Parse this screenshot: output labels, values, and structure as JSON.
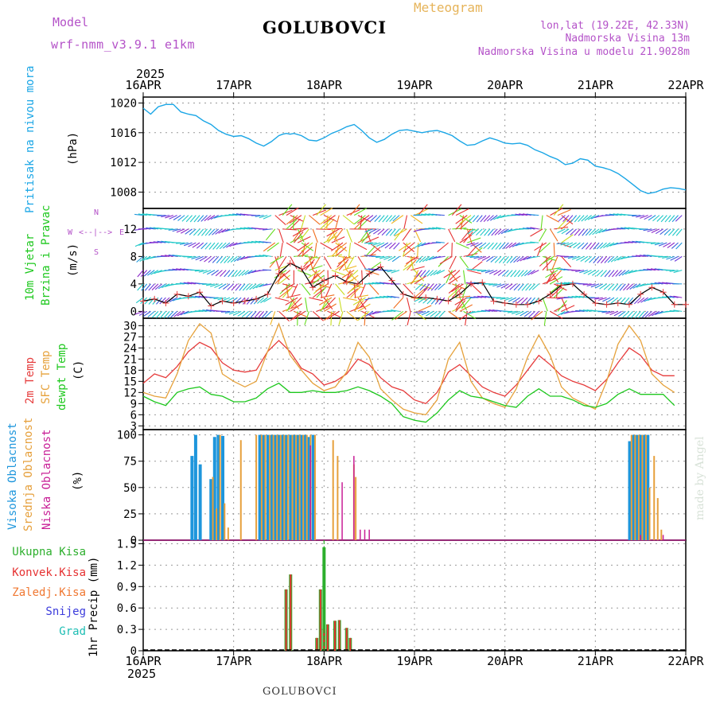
{
  "header": {
    "model_label": "Model",
    "model_name": "wrf-nmm_v3.9.1 e1km",
    "station": "GOLUBOVCI",
    "product": "Meteogram",
    "coords": "lon,lat (19.22E, 42.33N)",
    "elevation": "Nadmorska Visina 13m",
    "model_elevation": "Nadmorska Visina u modelu 21.9028m",
    "footer_station": "GOLUBOVCI",
    "credit": "made by Angel",
    "year": "2025"
  },
  "colors": {
    "pressure": "#1aa6e6",
    "temp2m": "#e63c3c",
    "sfc_temp": "#e6a23c",
    "dewpoint": "#1ec81e",
    "high_cloud": "#1e96dc",
    "mid_cloud": "#e6a03c",
    "low_cloud": "#c81e96",
    "total_precip": "#2daf2d",
    "conv_precip": "#e63232",
    "strat_precip": "#f07832",
    "snow": "#3c3cdc",
    "hail": "#1ebeb4",
    "purple_text": "#b452c8",
    "orange_text": "#e6b45a"
  },
  "panels": {
    "pressure": {
      "title": "Pritisak na nivou mora",
      "unit": "(hPa)"
    },
    "wind": {
      "title1": "10m Vjetar",
      "title2": "Brzina i Pravac",
      "unit": "(m/s)",
      "compass_n": "N",
      "compass_w": "W",
      "compass_e": "E",
      "compass_s": "S",
      "compass_arrows": "<--|-->"
    },
    "temp": {
      "title1": "2m Temp",
      "title2": "SFC Temp",
      "title3": "dewpt Temp",
      "unit": "(C)"
    },
    "cloud": {
      "title1": "Visoka Oblacnost",
      "title2": "Srednja Oblacnost",
      "title3": "Niska Oblacnost",
      "unit": "(%)"
    },
    "precip": {
      "leg1": "Ukupna Kisa",
      "leg2": "Konvek.Kisa",
      "leg3": "Zaledj.Kisa",
      "leg4": "Snijeg",
      "leg5": "Grad",
      "unit": "1hr Precip (mm)"
    }
  },
  "chart_data": [
    {
      "type": "line",
      "name": "pressure",
      "x_days": [
        0,
        0.083,
        0.125,
        0.167,
        0.25,
        0.333,
        0.375,
        0.417,
        0.5,
        0.583,
        0.667,
        0.75,
        0.833,
        0.917,
        1.0,
        1.083,
        1.167,
        1.25,
        1.333,
        1.417,
        1.5,
        1.542,
        1.583,
        1.625,
        1.667,
        1.75,
        1.833,
        1.917,
        2.0,
        2.083,
        2.167,
        2.25,
        2.333,
        2.417,
        2.5,
        2.583,
        2.667,
        2.75,
        2.833,
        2.917,
        3.0,
        3.083,
        3.167,
        3.25,
        3.333,
        3.417,
        3.5,
        3.583,
        3.667,
        3.75,
        3.833,
        3.917,
        4.0,
        4.083,
        4.167,
        4.25,
        4.333,
        4.417,
        4.5,
        4.583,
        4.667,
        4.75,
        4.833,
        4.917,
        5.0,
        5.083,
        5.167,
        5.25,
        5.333,
        5.417,
        5.5,
        5.583,
        5.667,
        5.75,
        5.833,
        5.917,
        6.0
      ],
      "values": [
        1019.3,
        1018.5,
        1019.0,
        1019.5,
        1019.8,
        1019.8,
        1019.3,
        1018.8,
        1018.5,
        1018.3,
        1017.6,
        1017.1,
        1016.3,
        1015.8,
        1015.5,
        1015.6,
        1015.2,
        1014.6,
        1014.2,
        1014.8,
        1015.6,
        1015.8,
        1015.9,
        1015.8,
        1015.9,
        1015.6,
        1015.0,
        1014.9,
        1015.3,
        1015.9,
        1016.3,
        1016.8,
        1017.1,
        1016.3,
        1015.3,
        1014.7,
        1015.1,
        1015.8,
        1016.3,
        1016.4,
        1016.2,
        1016.0,
        1016.2,
        1016.3,
        1016.0,
        1015.6,
        1014.9,
        1014.3,
        1014.4,
        1014.9,
        1015.3,
        1015.0,
        1014.6,
        1014.5,
        1014.6,
        1014.3,
        1013.7,
        1013.3,
        1012.8,
        1012.4,
        1011.7,
        1011.9,
        1012.5,
        1012.3,
        1011.5,
        1011.3,
        1011.0,
        1010.5,
        1009.8,
        1009.0,
        1008.2,
        1007.8,
        1008.0,
        1008.4,
        1008.6,
        1008.5,
        1008.3
      ],
      "yticks": [
        1008,
        1012,
        1016,
        1020
      ],
      "ylim": [
        1005.8,
        1020.8
      ]
    },
    {
      "type": "line",
      "name": "wind_speed",
      "x_days": [
        0,
        0.125,
        0.25,
        0.375,
        0.5,
        0.625,
        0.75,
        0.875,
        1.0,
        1.125,
        1.25,
        1.375,
        1.5,
        1.625,
        1.75,
        1.875,
        2.0,
        2.125,
        2.25,
        2.375,
        2.5,
        2.625,
        2.75,
        2.875,
        3.0,
        3.125,
        3.25,
        3.375,
        3.5,
        3.625,
        3.75,
        3.875,
        4.0,
        4.125,
        4.25,
        4.375,
        4.5,
        4.625,
        4.75,
        4.875,
        5.0,
        5.125,
        5.25,
        5.375,
        5.5,
        5.625,
        5.75,
        5.875,
        6.0
      ],
      "values": [
        1.5,
        1.8,
        1.2,
        2.5,
        2.2,
        2.8,
        0.8,
        1.5,
        1.2,
        1.5,
        1.8,
        2.5,
        5.5,
        7.0,
        6.2,
        3.5,
        4.5,
        5.2,
        4.3,
        4.0,
        5.5,
        6.5,
        4.5,
        2.5,
        2.0,
        2.0,
        1.8,
        1.5,
        2.5,
        4.0,
        4.2,
        1.5,
        1.2,
        1.0,
        1.0,
        1.5,
        2.5,
        3.8,
        4.0,
        2.5,
        1.2,
        1.0,
        1.2,
        1.0,
        2.5,
        3.5,
        2.8,
        1.0,
        1.0
      ],
      "yticks": [
        0,
        4,
        8,
        12
      ],
      "ylim": [
        -1,
        15
      ]
    },
    {
      "type": "line",
      "name": "temperature",
      "series": [
        {
          "name": "2m Temp",
          "values": [
            14.5,
            17.0,
            16.0,
            19.0,
            23.0,
            25.5,
            24.0,
            20.0,
            18.0,
            17.5,
            18.0,
            23.0,
            26.0,
            23.0,
            18.5,
            17.0,
            14.0,
            15.0,
            17.0,
            21.0,
            19.5,
            16.0,
            13.5,
            12.5,
            10.0,
            9.0,
            12.0,
            17.5,
            19.5,
            16.5,
            13.5,
            12.0,
            11.0,
            14.0,
            18.0,
            22.0,
            19.5,
            16.5,
            15.0,
            14.0,
            12.5,
            15.5,
            20.0,
            24.0,
            22.0,
            18.0,
            16.5,
            16.5
          ]
        },
        {
          "name": "SFC Temp",
          "values": [
            12.0,
            11.0,
            10.5,
            17.0,
            26.0,
            30.5,
            28.0,
            17.0,
            15.0,
            13.5,
            15.0,
            23.0,
            30.5,
            22.0,
            18.0,
            14.5,
            12.5,
            13.5,
            17.5,
            25.5,
            21.5,
            13.0,
            10.0,
            7.5,
            6.5,
            6.0,
            10.0,
            21.0,
            25.5,
            15.0,
            10.5,
            9.0,
            8.0,
            13.0,
            21.5,
            27.5,
            22.0,
            13.5,
            10.5,
            9.0,
            7.5,
            15.0,
            25.0,
            30.0,
            26.0,
            17.0,
            14.0,
            12.0
          ]
        },
        {
          "name": "dewpt Temp",
          "values": [
            11.0,
            9.5,
            8.5,
            12.0,
            13.0,
            13.5,
            11.5,
            11.0,
            9.5,
            9.5,
            10.5,
            13.0,
            14.5,
            12.0,
            12.0,
            12.5,
            12.0,
            12.0,
            12.5,
            13.5,
            12.5,
            11.0,
            9.0,
            5.5,
            4.5,
            4.0,
            6.5,
            10.0,
            12.5,
            11.0,
            10.5,
            9.5,
            8.5,
            8.0,
            11.0,
            13.0,
            11.0,
            11.0,
            10.0,
            8.5,
            8.0,
            9.0,
            11.5,
            13.0,
            11.5,
            11.5,
            11.5,
            8.5
          ]
        }
      ],
      "x_step_days": 0.125,
      "yticks": [
        3,
        6,
        9,
        12,
        15,
        18,
        21,
        24,
        27,
        30
      ],
      "ylim": [
        2.0,
        32.0
      ]
    },
    {
      "type": "bar",
      "name": "cloud_cover",
      "series": [
        {
          "name": "Visoka Oblacnost",
          "x_days": [
            0.54,
            0.58,
            0.63,
            0.75,
            0.79,
            0.83,
            0.88,
            1.29,
            1.33,
            1.38,
            1.42,
            1.46,
            1.5,
            1.54,
            1.58,
            1.63,
            1.67,
            1.71,
            1.75,
            1.79,
            1.83,
            1.88,
            5.38,
            5.42,
            5.46,
            5.5,
            5.54,
            5.58
          ],
          "values": [
            80,
            100,
            72,
            58,
            98,
            100,
            99,
            100,
            100,
            100,
            100,
            100,
            100,
            100,
            100,
            100,
            100,
            100,
            100,
            100,
            98,
            100,
            94,
            100,
            100,
            100,
            100,
            100
          ]
        },
        {
          "name": "Srednja Oblacnost",
          "x_days": [
            0.77,
            0.81,
            0.85,
            0.9,
            0.94,
            1.08,
            1.25,
            1.31,
            1.35,
            1.4,
            1.44,
            1.48,
            1.52,
            1.56,
            1.6,
            1.65,
            1.69,
            1.73,
            1.77,
            1.81,
            1.85,
            1.9,
            2.1,
            2.15,
            2.33,
            2.35,
            5.4,
            5.44,
            5.48,
            5.52,
            5.56,
            5.6,
            5.65,
            5.69,
            5.73
          ],
          "values": [
            60,
            30,
            100,
            35,
            12,
            95,
            100,
            100,
            100,
            100,
            100,
            100,
            100,
            100,
            100,
            100,
            100,
            100,
            100,
            100,
            100,
            100,
            95,
            80,
            72,
            60,
            100,
            100,
            100,
            100,
            100,
            50,
            80,
            40,
            10
          ]
        },
        {
          "name": "Niska Oblacnost",
          "x_days": [
            1.85,
            2.2,
            2.33,
            2.4,
            2.45,
            2.5,
            5.5,
            5.75
          ],
          "values": [
            90,
            55,
            80,
            10,
            10,
            10,
            5,
            5
          ]
        }
      ],
      "yticks": [
        0,
        25,
        50,
        75,
        100
      ],
      "ylim": [
        0,
        105
      ]
    },
    {
      "type": "bar",
      "name": "precip_1hr",
      "x_days": [
        1.58,
        1.63,
        1.92,
        1.96,
        2.0,
        2.04,
        2.12,
        2.17,
        2.25,
        2.29
      ],
      "total": [
        0.86,
        1.07,
        0.18,
        0.86,
        1.45,
        0.37,
        0.42,
        0.43,
        0.32,
        0.18
      ],
      "convective": [
        0.86,
        1.07,
        0.18,
        0.86,
        0.3,
        0.37,
        0.42,
        0.43,
        0.32,
        0.18
      ],
      "yticks": [
        0,
        0.3,
        0.6,
        0.9,
        1.2,
        1.5
      ],
      "ylim": [
        0,
        1.55
      ]
    }
  ],
  "x_axis": {
    "labels": [
      "16APR",
      "17APR",
      "18APR",
      "19APR",
      "20APR",
      "21APR",
      "22APR"
    ]
  }
}
